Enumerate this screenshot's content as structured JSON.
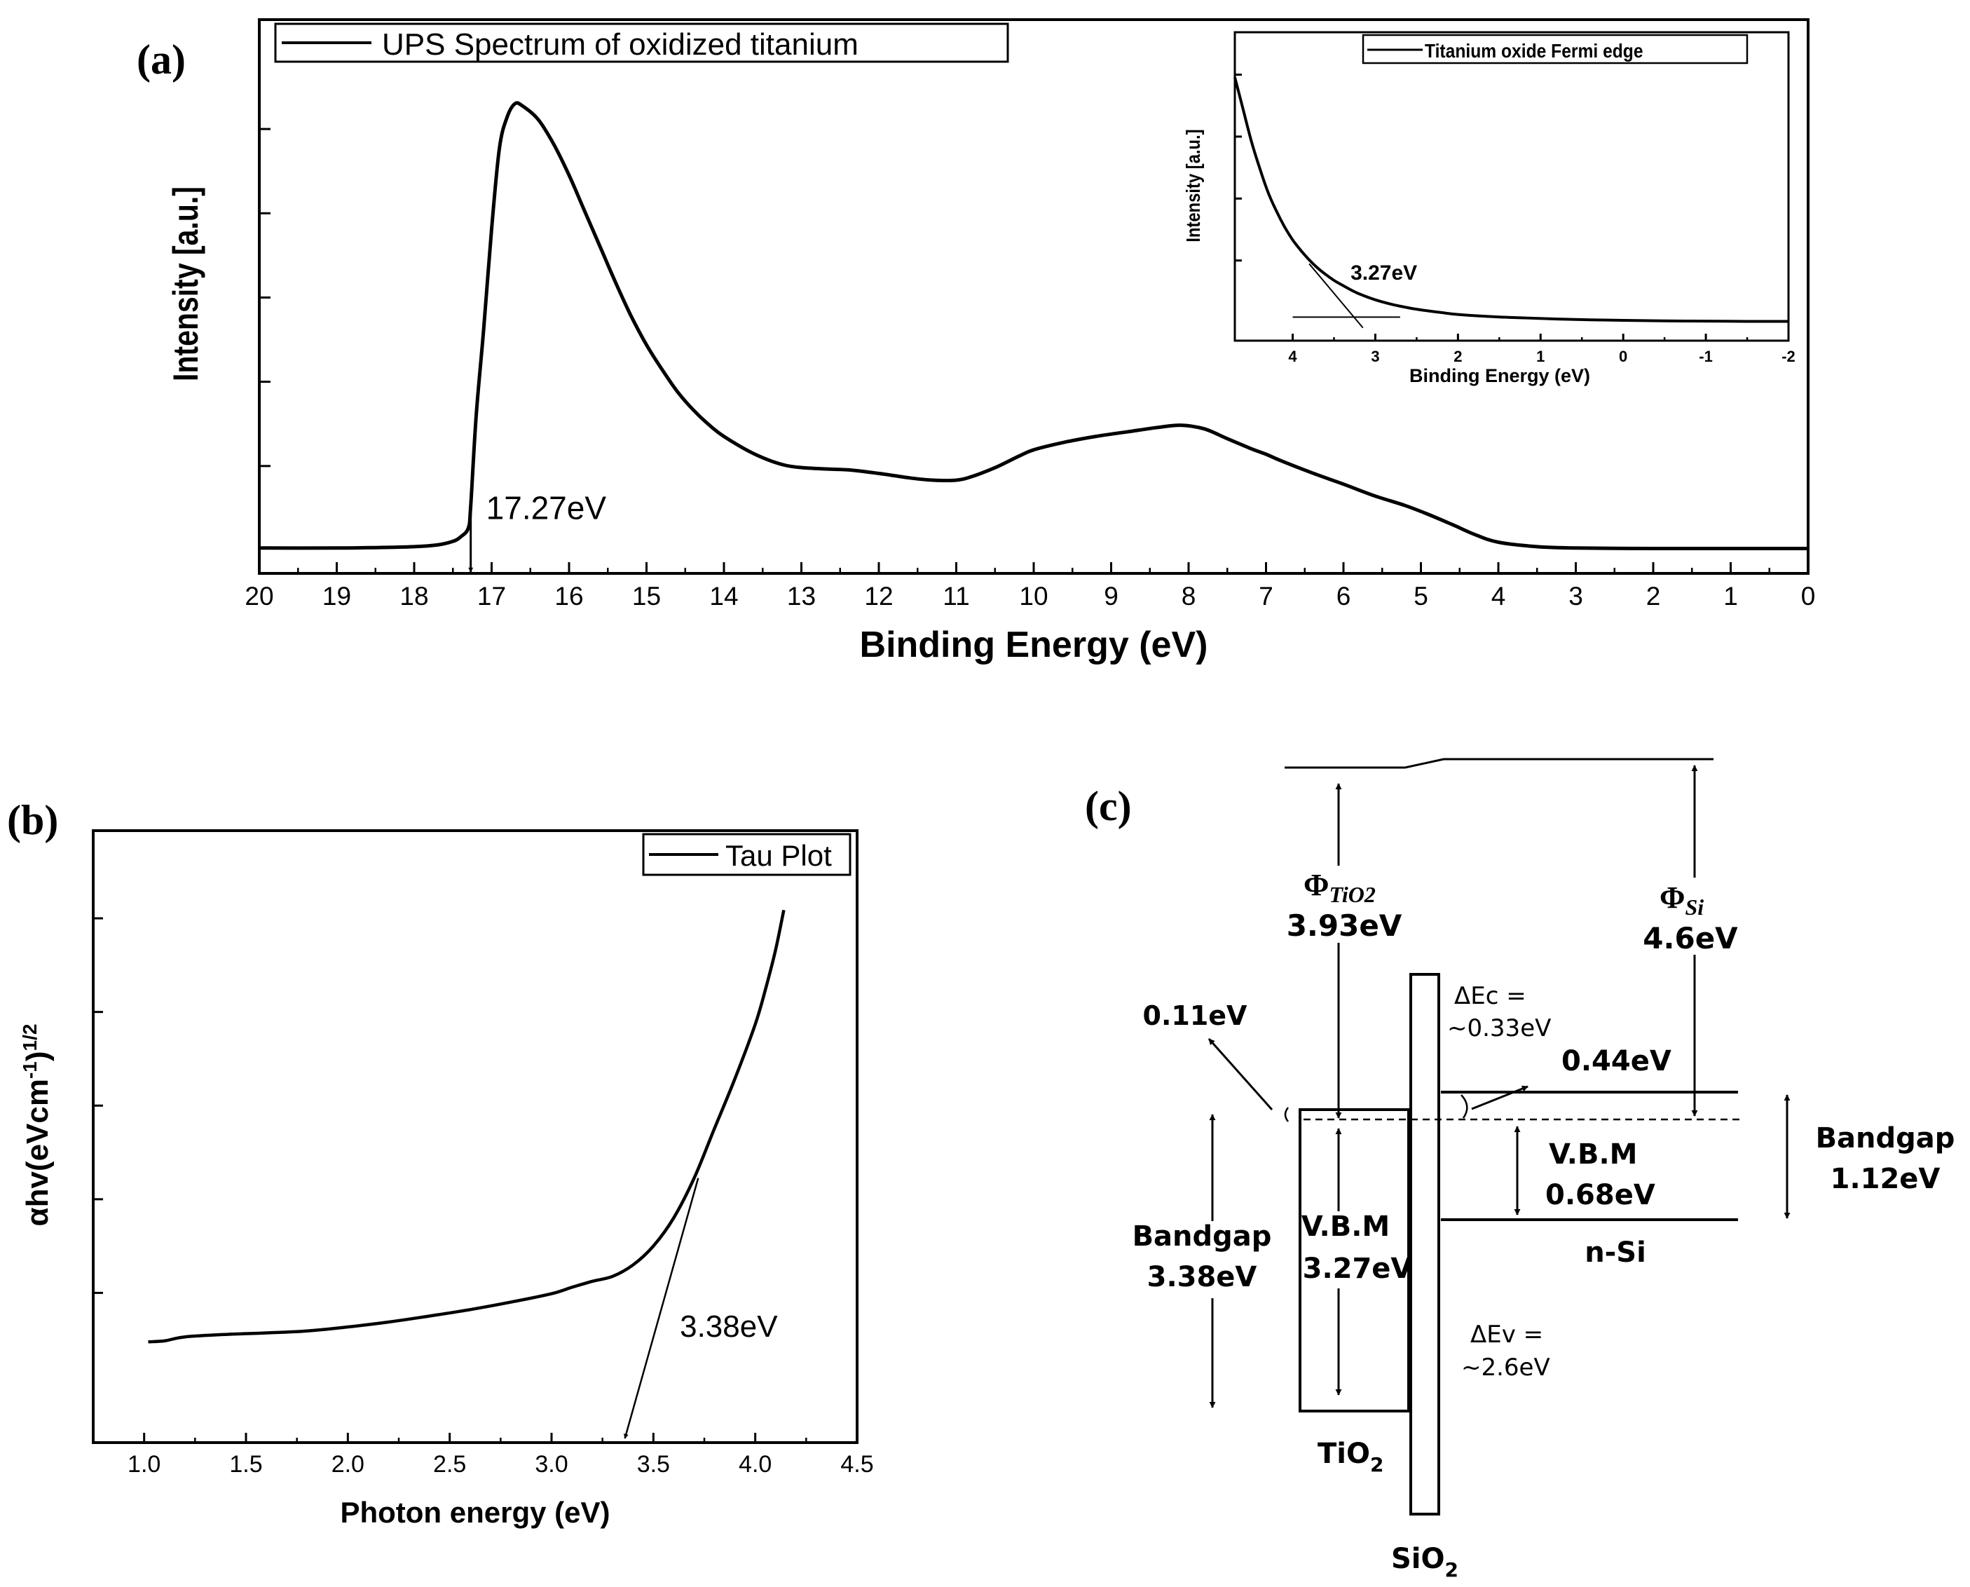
{
  "chart_data": [
    {
      "id": "a",
      "panel_label": "(a)",
      "type": "line",
      "title": "",
      "xlabel": "Binding Energy (eV)",
      "ylabel": "Intensity [a.u.]",
      "xlim": [
        20,
        0
      ],
      "ylim": [
        0,
        1
      ],
      "x_ticks": [
        "20",
        "19",
        "18",
        "17",
        "16",
        "15",
        "14",
        "13",
        "12",
        "11",
        "10",
        "9",
        "8",
        "7",
        "6",
        "5",
        "4",
        "3",
        "2",
        "1",
        "0"
      ],
      "legend": "UPS Spectrum of oxidized titanium",
      "legend_position": "top-left",
      "annotation": "17.27eV",
      "series": [
        {
          "name": "UPS Spectrum of oxidized titanium",
          "x": [
            20,
            19,
            18.5,
            18,
            17.7,
            17.5,
            17.4,
            17.3,
            17.27,
            17.2,
            17.1,
            17.0,
            16.9,
            16.8,
            16.7,
            16.6,
            16.4,
            16.2,
            16.0,
            15.8,
            15.6,
            15.4,
            15.2,
            15.0,
            14.8,
            14.6,
            14.4,
            14.2,
            14.0,
            13.6,
            13.2,
            12.8,
            12.4,
            12.0,
            11.6,
            11.3,
            11.0,
            10.8,
            10.5,
            10.2,
            10.0,
            9.6,
            9.2,
            8.8,
            8.4,
            8.1,
            7.8,
            7.5,
            7.2,
            7.0,
            6.8,
            6.4,
            6.0,
            5.6,
            5.2,
            4.9,
            4.6,
            4.3,
            4.0,
            3.5,
            3.0,
            2.0,
            1.0,
            0
          ],
          "y": [
            0.005,
            0.005,
            0.006,
            0.008,
            0.012,
            0.02,
            0.03,
            0.05,
            0.1,
            0.3,
            0.5,
            0.72,
            0.9,
            0.97,
            1.0,
            0.995,
            0.965,
            0.91,
            0.84,
            0.76,
            0.68,
            0.6,
            0.525,
            0.46,
            0.405,
            0.355,
            0.315,
            0.282,
            0.255,
            0.215,
            0.19,
            0.183,
            0.18,
            0.172,
            0.162,
            0.157,
            0.157,
            0.165,
            0.185,
            0.21,
            0.225,
            0.242,
            0.255,
            0.265,
            0.275,
            0.28,
            0.272,
            0.25,
            0.228,
            0.215,
            0.2,
            0.173,
            0.148,
            0.122,
            0.1,
            0.08,
            0.058,
            0.035,
            0.018,
            0.008,
            0.005,
            0.004,
            0.004,
            0.004
          ]
        }
      ]
    },
    {
      "id": "a_inset",
      "type": "line",
      "xlabel": "Binding Energy (eV)",
      "ylabel": "Intensity [a.u.]",
      "xlim": [
        4.7,
        -2
      ],
      "ylim": [
        0,
        1
      ],
      "x_ticks": [
        "4",
        "3",
        "2",
        "1",
        "0",
        "-1",
        "-2"
      ],
      "legend": "Titanium oxide Fermi edge",
      "legend_position": "top-right",
      "annotation": "3.27eV",
      "series": [
        {
          "name": "Titanium oxide Fermi edge",
          "x": [
            4.7,
            4.6,
            4.5,
            4.4,
            4.3,
            4.2,
            4.1,
            4.0,
            3.9,
            3.8,
            3.7,
            3.6,
            3.5,
            3.4,
            3.3,
            3.2,
            3.0,
            2.8,
            2.6,
            2.4,
            2.2,
            2.0,
            1.6,
            1.2,
            0.8,
            0.4,
            0,
            -0.5,
            -1,
            -1.5,
            -2
          ],
          "y": [
            0.92,
            0.8,
            0.68,
            0.58,
            0.49,
            0.42,
            0.36,
            0.31,
            0.27,
            0.235,
            0.205,
            0.18,
            0.158,
            0.14,
            0.123,
            0.108,
            0.085,
            0.068,
            0.055,
            0.045,
            0.037,
            0.03,
            0.022,
            0.017,
            0.013,
            0.01,
            0.008,
            0.006,
            0.005,
            0.004,
            0.004
          ]
        }
      ]
    },
    {
      "id": "b",
      "panel_label": "(b)",
      "type": "line",
      "xlabel": "Photon energy (eV)",
      "ylabel": "αhν(eVcm⁻¹)^1/2",
      "ylabel_main": "αhv(eVcm",
      "ylabel_sup1": "-1",
      "ylabel_close": ")",
      "ylabel_sup2": "1/2",
      "xlim": [
        0.75,
        4.5
      ],
      "ylim": [
        0,
        1
      ],
      "x_ticks": [
        "1.0",
        "1.5",
        "2.0",
        "2.5",
        "3.0",
        "3.5",
        "4.0",
        "4.5"
      ],
      "legend": "Tau Plot",
      "legend_position": "top-right",
      "annotation": "3.38eV",
      "series": [
        {
          "name": "Tau Plot",
          "x": [
            1.02,
            1.1,
            1.2,
            1.4,
            1.6,
            1.8,
            2.0,
            2.2,
            2.4,
            2.6,
            2.8,
            3.0,
            3.1,
            3.2,
            3.3,
            3.4,
            3.5,
            3.6,
            3.7,
            3.8,
            3.9,
            4.0,
            4.05,
            4.1,
            4.14
          ],
          "y": [
            0.09,
            0.092,
            0.1,
            0.105,
            0.108,
            0.112,
            0.12,
            0.13,
            0.142,
            0.155,
            0.17,
            0.187,
            0.2,
            0.212,
            0.222,
            0.245,
            0.283,
            0.34,
            0.42,
            0.52,
            0.62,
            0.73,
            0.8,
            0.88,
            0.96
          ]
        }
      ]
    }
  ],
  "diagram_c": {
    "panel_label": "(c)",
    "phi_tio2_symbol": "Φ",
    "phi_tio2_sub": "TiO2",
    "phi_tio2_value": "3.93eV",
    "phi_si_symbol": "Φ",
    "phi_si_sub": "Si",
    "phi_si_value": "4.6eV",
    "delta_ec_line1": "ΔEc =",
    "delta_ec_line2": "~0.33eV",
    "offset_0_11": "0.11eV",
    "offset_0_44": "0.44eV",
    "vbm_si_label": "V.B.M",
    "vbm_si_value": "0.68eV",
    "bandgap_si_label": "Bandgap",
    "bandgap_si_value": "1.12eV",
    "bandgap_tio2_label": "Bandgap",
    "bandgap_tio2_value": "3.38eV",
    "vbm_tio2_label": "V.B.M",
    "vbm_tio2_value": "3.27eV",
    "nsi_label": "n-Si",
    "delta_ev_line1": "ΔEv =",
    "delta_ev_line2": "~2.6eV",
    "tio2_label_main": "TiO",
    "tio2_label_sub": "2",
    "sio2_label_main": "SiO",
    "sio2_label_sub": "2"
  }
}
